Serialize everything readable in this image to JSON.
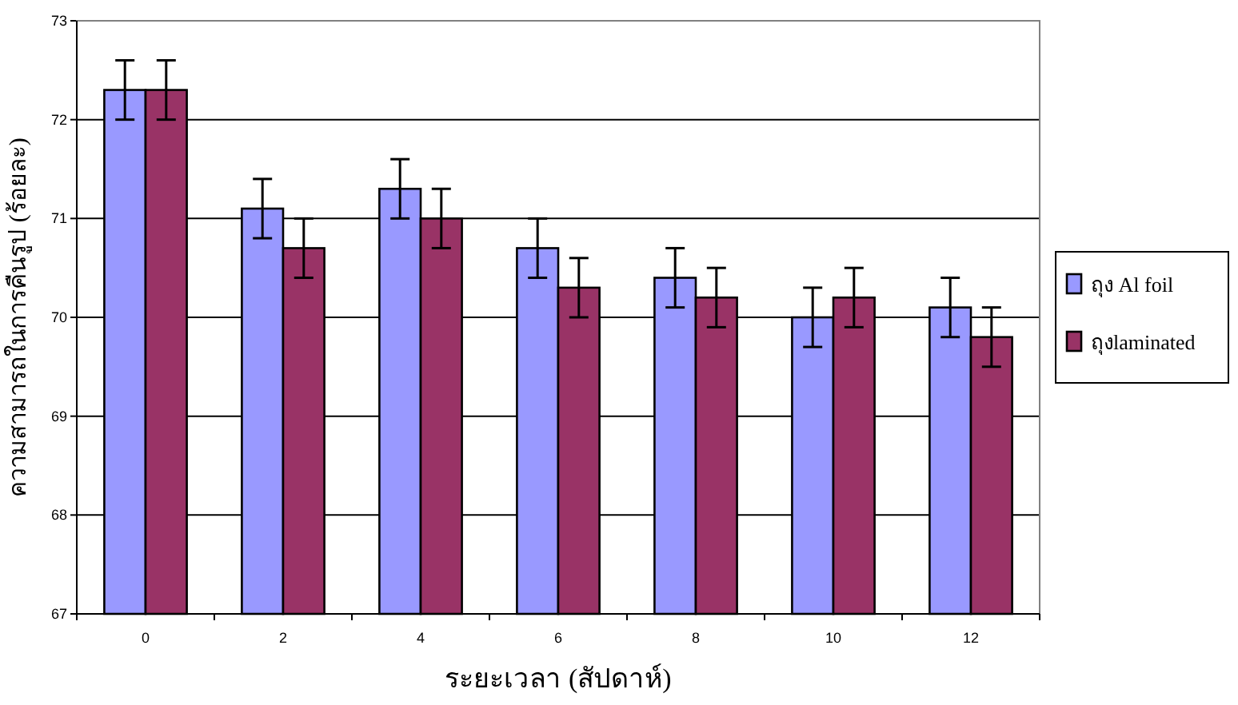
{
  "chart_data": {
    "type": "bar",
    "xlabel": "ระยะเวลา (สัปดาห์)",
    "ylabel": "ความสามารถในการคืนรูป (ร้อยละ)",
    "categories": [
      "0",
      "2",
      "4",
      "6",
      "8",
      "10",
      "12"
    ],
    "series": [
      {
        "name": "ถุง Al foil",
        "color": "#9999ff",
        "values": [
          72.3,
          71.1,
          71.3,
          70.7,
          70.4,
          70.0,
          70.1
        ],
        "errors": [
          0.3,
          0.3,
          0.3,
          0.3,
          0.3,
          0.3,
          0.3
        ]
      },
      {
        "name": "ถุงlaminated",
        "color": "#993366",
        "values": [
          72.3,
          70.7,
          71.0,
          70.3,
          70.2,
          70.2,
          69.8
        ],
        "errors": [
          0.3,
          0.3,
          0.3,
          0.3,
          0.3,
          0.3,
          0.3
        ]
      }
    ],
    "ylim": [
      67,
      73
    ],
    "yticks": [
      67,
      68,
      69,
      70,
      71,
      72,
      73
    ],
    "grid": "y",
    "legend": "right"
  }
}
